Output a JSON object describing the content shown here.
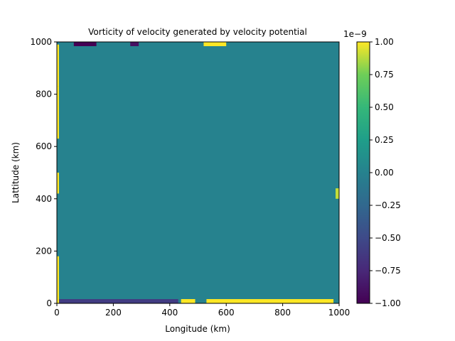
{
  "chart_data": {
    "type": "heatmap",
    "title": "Vorticity of velocity generated by velocity potential",
    "xlabel": "Longitude (km)",
    "ylabel": "Lattitude (km)",
    "xlim": [
      0,
      1000
    ],
    "ylim": [
      0,
      1000
    ],
    "x_ticks": [
      "0",
      "200",
      "400",
      "600",
      "800",
      "1000"
    ],
    "y_ticks": [
      "0",
      "200",
      "400",
      "600",
      "800",
      "1000"
    ],
    "colormap": "viridis",
    "colorbar": {
      "range": [
        -1.0,
        1.0
      ],
      "offset_label": "1e−9",
      "ticks": [
        "−1.00",
        "−0.75",
        "−0.50",
        "−0.25",
        "0.00",
        "0.25",
        "0.50",
        "0.75",
        "1.00"
      ]
    },
    "interior_value": 0.0,
    "boundary_features": [
      {
        "edge": "top",
        "from": 60,
        "to": 140,
        "value": -1.0
      },
      {
        "edge": "top",
        "from": 260,
        "to": 290,
        "value": -0.9
      },
      {
        "edge": "top",
        "from": 520,
        "to": 600,
        "value": 1.0
      },
      {
        "edge": "bottom",
        "from": 440,
        "to": 490,
        "value": 1.0
      },
      {
        "edge": "bottom",
        "from": 530,
        "to": 980,
        "value": 1.0
      },
      {
        "edge": "bottom",
        "from": 0,
        "to": 430,
        "value": -0.6
      },
      {
        "edge": "left",
        "from": 830,
        "to": 990,
        "value": 1.0
      },
      {
        "edge": "left",
        "from": 630,
        "to": 830,
        "value": 1.0
      },
      {
        "edge": "left",
        "from": 420,
        "to": 500,
        "value": 1.0
      },
      {
        "edge": "left",
        "from": 0,
        "to": 180,
        "value": 1.0
      },
      {
        "edge": "right",
        "from": 400,
        "to": 440,
        "value": 0.9
      }
    ]
  }
}
